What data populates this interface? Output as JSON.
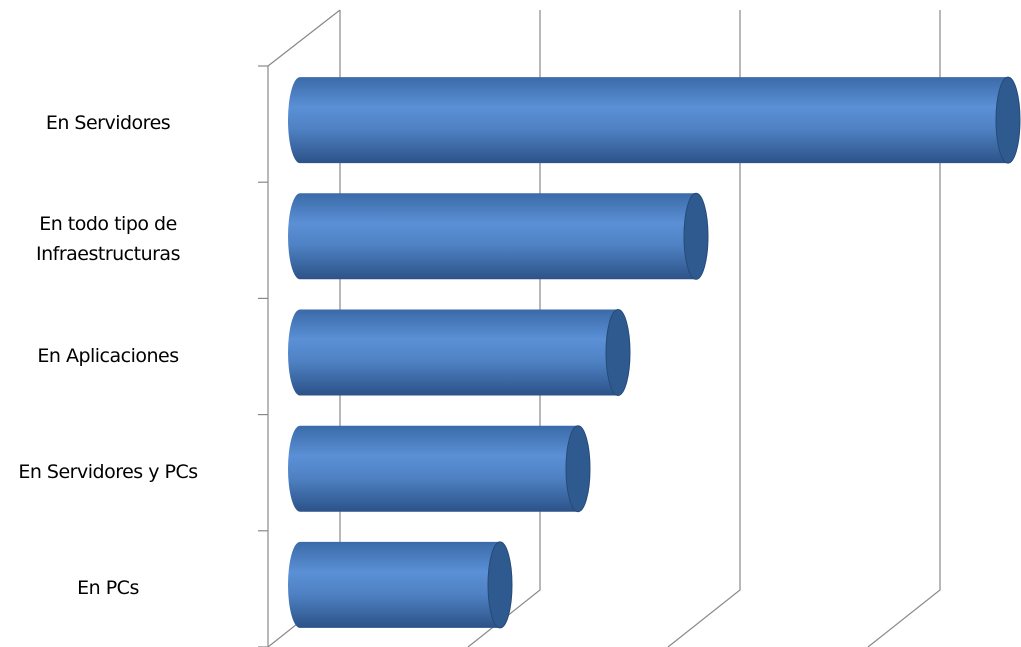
{
  "chart_data": {
    "type": "bar3d",
    "categories": [
      "En Servidores",
      "En todo tipo de\nInfraestructuras",
      "En Aplicaciones",
      "En Servidores y PCs",
      "En PCs"
    ],
    "values": [
      3.54,
      1.98,
      1.59,
      1.39,
      1.0
    ],
    "color": "#4f81bd",
    "xlim": [
      0,
      3.6
    ],
    "xticks": [
      0,
      1,
      2,
      3
    ],
    "grid": true
  }
}
